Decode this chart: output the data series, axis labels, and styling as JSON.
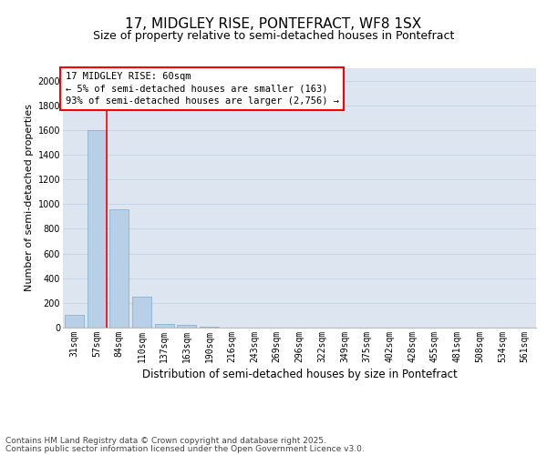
{
  "title1": "17, MIDGLEY RISE, PONTEFRACT, WF8 1SX",
  "title2": "Size of property relative to semi-detached houses in Pontefract",
  "xlabel": "Distribution of semi-detached houses by size in Pontefract",
  "ylabel": "Number of semi-detached properties",
  "categories": [
    "31sqm",
    "57sqm",
    "84sqm",
    "110sqm",
    "137sqm",
    "163sqm",
    "190sqm",
    "216sqm",
    "243sqm",
    "269sqm",
    "296sqm",
    "322sqm",
    "349sqm",
    "375sqm",
    "402sqm",
    "428sqm",
    "455sqm",
    "481sqm",
    "508sqm",
    "534sqm",
    "561sqm"
  ],
  "values": [
    100,
    1600,
    960,
    250,
    30,
    20,
    5,
    0,
    0,
    0,
    0,
    0,
    0,
    0,
    0,
    0,
    0,
    0,
    0,
    0,
    0
  ],
  "bar_color": "#b8cfe8",
  "bar_edge_color": "#7aaad0",
  "annotation_text": "17 MIDGLEY RISE: 60sqm\n← 5% of semi-detached houses are smaller (163)\n93% of semi-detached houses are larger (2,756) →",
  "ylim": [
    0,
    2100
  ],
  "yticks": [
    0,
    200,
    400,
    600,
    800,
    1000,
    1200,
    1400,
    1600,
    1800,
    2000
  ],
  "grid_color": "#c8d4e8",
  "bg_color": "#dde6f0",
  "footer1": "Contains HM Land Registry data © Crown copyright and database right 2025.",
  "footer2": "Contains public sector information licensed under the Open Government Licence v3.0.",
  "title1_fontsize": 11,
  "title2_fontsize": 9,
  "xlabel_fontsize": 8.5,
  "ylabel_fontsize": 8,
  "tick_fontsize": 7,
  "footer_fontsize": 6.5,
  "ann_fontsize": 7.5,
  "property_line_x": 1.43
}
